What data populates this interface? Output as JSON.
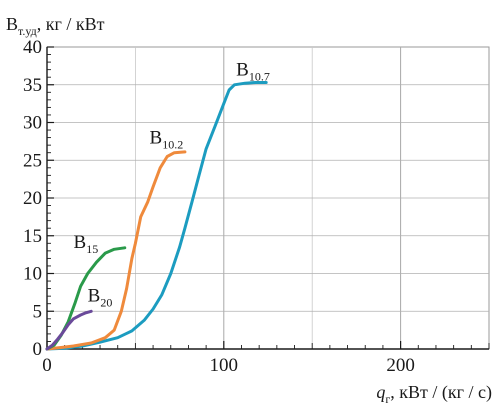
{
  "chart_data": {
    "type": "line",
    "ylabel": {
      "main": "B",
      "sub": "т.уд",
      "unit": ", кг / кВт"
    },
    "xlabel": {
      "main": "q",
      "sub": "г",
      "unit": ", кВт / (кг / с)"
    },
    "xlim": [
      0,
      250
    ],
    "ylim": [
      0,
      40
    ],
    "x_ticks": [
      0,
      100,
      200
    ],
    "y_ticks": [
      0,
      5,
      10,
      15,
      20,
      25,
      30,
      35,
      40
    ],
    "grid": true,
    "colors": {
      "B10.7": "#1c9cc0",
      "B10.2": "#ef8a3c",
      "B15": "#2a9a4a",
      "B20": "#6a4a9a"
    },
    "series": [
      {
        "name": "B10.7",
        "label_main": "B",
        "label_sub": "10.7",
        "label_at": [
          107,
          36.2
        ],
        "points": [
          [
            0,
            0
          ],
          [
            10,
            0.1
          ],
          [
            20,
            0.4
          ],
          [
            30,
            0.9
          ],
          [
            40,
            1.5
          ],
          [
            48,
            2.4
          ],
          [
            55,
            3.8
          ],
          [
            60,
            5.3
          ],
          [
            65,
            7.2
          ],
          [
            70,
            10
          ],
          [
            75,
            13.5
          ],
          [
            78,
            16
          ],
          [
            82,
            19.5
          ],
          [
            86,
            23
          ],
          [
            90,
            26.5
          ],
          [
            95,
            29.5
          ],
          [
            100,
            32.5
          ],
          [
            103,
            34.3
          ],
          [
            106,
            35
          ],
          [
            112,
            35.2
          ],
          [
            118,
            35.3
          ],
          [
            124,
            35.3
          ]
        ]
      },
      {
        "name": "B10.2",
        "label_main": "B",
        "label_sub": "10.2",
        "label_at": [
          58,
          27.2
        ],
        "points": [
          [
            0,
            0
          ],
          [
            8,
            0.2
          ],
          [
            15,
            0.4
          ],
          [
            25,
            0.8
          ],
          [
            33,
            1.5
          ],
          [
            38,
            2.5
          ],
          [
            42,
            5
          ],
          [
            45,
            8
          ],
          [
            48,
            12
          ],
          [
            50,
            14
          ],
          [
            53,
            17.5
          ],
          [
            57,
            19.5
          ],
          [
            60,
            21.5
          ],
          [
            64,
            24
          ],
          [
            68,
            25.5
          ],
          [
            72,
            26
          ],
          [
            78,
            26.1
          ]
        ]
      },
      {
        "name": "B15",
        "label_main": "B",
        "label_sub": "15",
        "label_at": [
          15,
          13.4
        ],
        "points": [
          [
            0,
            0
          ],
          [
            4,
            0.5
          ],
          [
            8,
            1.8
          ],
          [
            12,
            3.6
          ],
          [
            16,
            6.2
          ],
          [
            19,
            8.3
          ],
          [
            23,
            10
          ],
          [
            28,
            11.5
          ],
          [
            33,
            12.7
          ],
          [
            38,
            13.2
          ],
          [
            44,
            13.4
          ]
        ]
      },
      {
        "name": "B20",
        "label_main": "B",
        "label_sub": "20",
        "label_at": [
          23,
          6.3
        ],
        "points": [
          [
            0,
            0
          ],
          [
            3,
            0.5
          ],
          [
            6,
            1.3
          ],
          [
            9,
            2.2
          ],
          [
            12,
            3.2
          ],
          [
            15,
            4
          ],
          [
            19,
            4.5
          ],
          [
            22,
            4.8
          ],
          [
            25,
            5
          ]
        ]
      }
    ]
  }
}
